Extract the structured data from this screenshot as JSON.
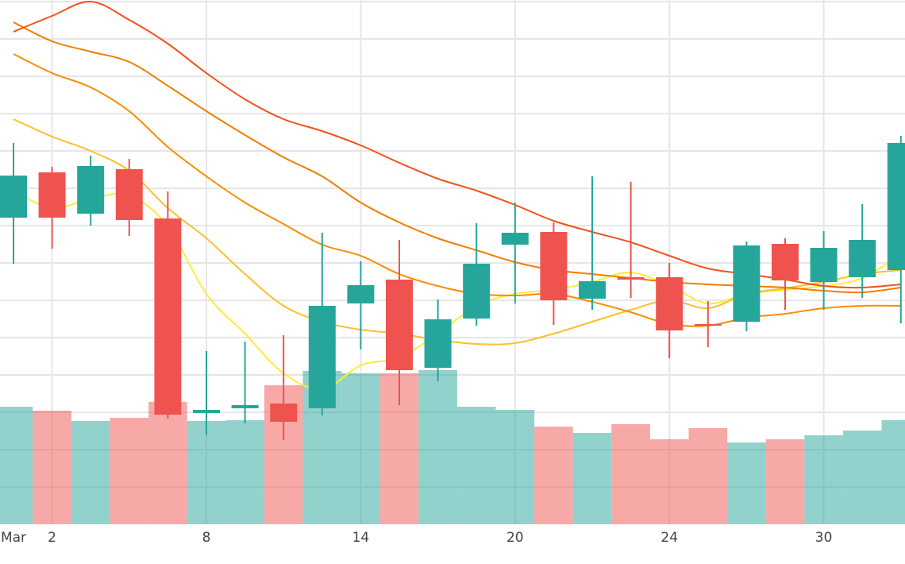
{
  "chart_data": {
    "type": "candlestick",
    "categories": [
      "Mar",
      "2",
      null,
      null,
      null,
      "8",
      null,
      null,
      null,
      "14",
      null,
      null,
      null,
      "20",
      null,
      null,
      null,
      "24",
      null,
      null,
      null,
      "30",
      null,
      null
    ],
    "open": [
      386,
      443,
      391,
      447,
      385,
      140,
      146,
      152,
      146,
      278,
      308,
      197,
      259,
      352,
      368,
      284,
      311,
      311,
      252,
      255,
      353,
      305,
      311,
      320
    ],
    "high": [
      480,
      450,
      464,
      460,
      419,
      218,
      230,
      238,
      367,
      331,
      358,
      283,
      379,
      405,
      380,
      438,
      431,
      329,
      281,
      356,
      360,
      369,
      403,
      489
    ],
    "low": [
      328,
      347,
      376,
      363,
      133,
      112,
      127,
      106,
      137,
      220,
      150,
      180,
      250,
      278,
      251,
      270,
      285,
      209,
      223,
      243,
      270,
      270,
      285,
      253
    ],
    "close": [
      439,
      386,
      451,
      383,
      138,
      144,
      150,
      129,
      275,
      301,
      194,
      258,
      328,
      367,
      282,
      306,
      308,
      244,
      250,
      351,
      307,
      348,
      358,
      480
    ],
    "volume": [
      148,
      143,
      130,
      134,
      154,
      130,
      131,
      175,
      193,
      190,
      190,
      194,
      148,
      144,
      123,
      115,
      126,
      107,
      121,
      103,
      107,
      112,
      118,
      131
    ],
    "increasing_color": "#26a69a",
    "decreasing_color": "#ef5350",
    "volume_opacity": 0.5,
    "moving_averages": [
      {
        "color": "#ffeb3b",
        "values": [
          420,
          398,
          410,
          414,
          375,
          290,
          240,
          190,
          170,
          200,
          210,
          240,
          275,
          290,
          295,
          305,
          317,
          300,
          278,
          290,
          295,
          300,
          310,
          340
        ]
      },
      {
        "color": "#fbc02d",
        "values": [
          510,
          488,
          470,
          445,
          398,
          360,
          315,
          275,
          255,
          245,
          240,
          232,
          227,
          228,
          240,
          255,
          270,
          282,
          272,
          290,
          297,
          305,
          315,
          320
        ]
      },
      {
        "color": "#fb8c00",
        "values": [
          592,
          568,
          550,
          520,
          475,
          438,
          405,
          378,
          352,
          338,
          315,
          300,
          290,
          288,
          290,
          280,
          267,
          252,
          250,
          260,
          265,
          272,
          275,
          275
        ]
      },
      {
        "color": "#f57c00",
        "values": [
          632,
          608,
          595,
          582,
          552,
          520,
          490,
          462,
          438,
          405,
          380,
          360,
          345,
          330,
          320,
          315,
          310,
          305,
          302,
          300,
          298,
          294,
          292,
          298
        ]
      },
      {
        "color": "#f4511e",
        "values": [
          620,
          640,
          658,
          635,
          605,
          568,
          535,
          510,
          495,
          477,
          455,
          435,
          420,
          402,
          382,
          368,
          355,
          338,
          322,
          315,
          308,
          300,
          298,
          302
        ]
      }
    ],
    "ylim": [
      0,
      660
    ],
    "yticks": [
      47,
      94,
      141,
      188,
      235,
      282,
      329,
      376,
      423,
      470,
      517,
      564,
      611,
      658
    ],
    "grid": true
  }
}
